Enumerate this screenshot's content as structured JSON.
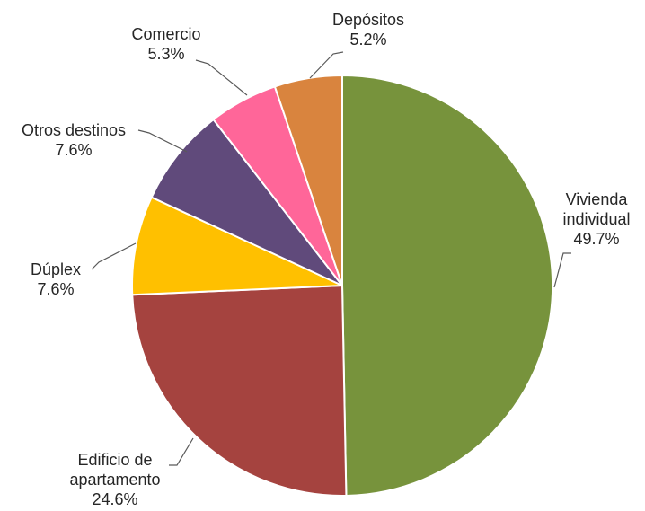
{
  "chart_data": {
    "type": "pie",
    "title": "",
    "start_angle_deg": 0,
    "direction": "clockwise",
    "slices": [
      {
        "label_lines": [
          "Vivienda",
          "individual"
        ],
        "value": 49.7,
        "value_label": "49.7%",
        "color": "#77933C"
      },
      {
        "label_lines": [
          "Edificio de",
          "apartamento"
        ],
        "value": 24.6,
        "value_label": "24.6%",
        "color": "#A5433F"
      },
      {
        "label_lines": [
          "Dúplex"
        ],
        "value": 7.6,
        "value_label": "7.6%",
        "color": "#FFC000"
      },
      {
        "label_lines": [
          "Otros destinos"
        ],
        "value": 7.6,
        "value_label": "7.6%",
        "color": "#604A7B"
      },
      {
        "label_lines": [
          "Comercio"
        ],
        "value": 5.3,
        "value_label": "5.3%",
        "color": "#FF6699"
      },
      {
        "label_lines": [
          "Depósitos"
        ],
        "value": 5.2,
        "value_label": "5.2%",
        "color": "#D9843E"
      }
    ]
  }
}
